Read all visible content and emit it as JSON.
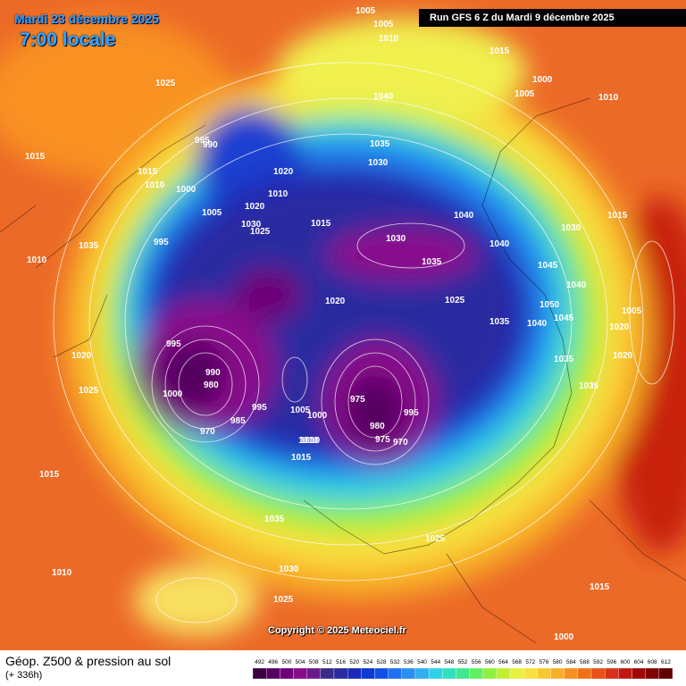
{
  "header": {
    "valid_date": "Mardi 23 décembre 2025",
    "local_time": "7:00 locale",
    "run": "Run GFS 6 Z du Mardi 9 décembre 2025"
  },
  "copyright": "Copyright © 2025 Meteociel.fr",
  "footer": {
    "title": "Géop. Z500 & pression au sol",
    "lead": "(+ 336h)"
  },
  "legend": {
    "values": [
      492,
      496,
      500,
      504,
      508,
      512,
      516,
      520,
      524,
      528,
      532,
      536,
      540,
      544,
      548,
      552,
      556,
      560,
      564,
      568,
      572,
      576,
      580,
      584,
      588,
      592,
      596,
      600,
      604,
      608,
      612
    ],
    "colors": [
      "#3c0040",
      "#550060",
      "#6e0078",
      "#8a0a8c",
      "#6a1a8a",
      "#3a2a8a",
      "#2a2aa0",
      "#1a2ab8",
      "#0a3ad0",
      "#1050e8",
      "#2070f0",
      "#2890f0",
      "#30b0f0",
      "#30d0e8",
      "#30e0c0",
      "#40e890",
      "#60f060",
      "#90f040",
      "#c0f030",
      "#e8f040",
      "#f8e040",
      "#f8c830",
      "#f8b028",
      "#f89020",
      "#f07018",
      "#e85018",
      "#d83018",
      "#c01810",
      "#a00808",
      "#800000",
      "#600000"
    ]
  },
  "isobar_labels": [
    1005,
    1005,
    1010,
    1015,
    1000,
    1040,
    1005,
    1010,
    1025,
    995,
    990,
    1035,
    1030,
    1015,
    1015,
    1020,
    1010,
    1000,
    1005,
    1020,
    1030,
    1025,
    1010,
    1015,
    1040,
    1030,
    1030,
    1015,
    995,
    1010,
    1035,
    1035,
    1040,
    1045,
    1040,
    1025,
    1020,
    1050,
    1035,
    1040,
    1045,
    1020,
    995,
    990,
    980,
    1000,
    985,
    970,
    995,
    1000,
    1005,
    975,
    980,
    975,
    970,
    995,
    1010,
    1015,
    1035,
    1030,
    1025,
    1010,
    1025,
    1020,
    1015,
    1010,
    1025,
    1035,
    1035,
    1015,
    1005,
    1020,
    1000
  ]
}
